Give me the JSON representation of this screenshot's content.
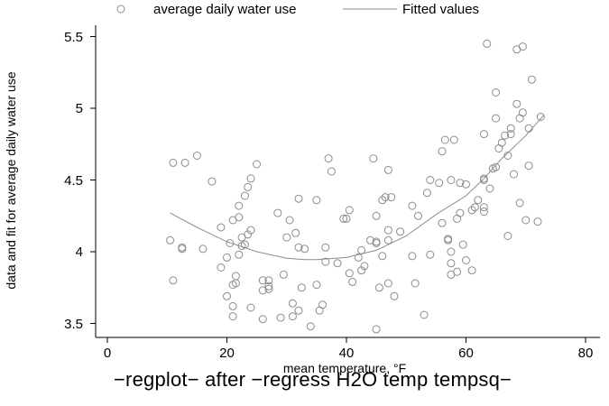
{
  "chart_data": {
    "type": "scatter",
    "title": "",
    "caption": "−regplot− after −regress H2O temp tempsq−",
    "xlabel": "mean temperature, °F",
    "ylabel": "data and fit for average daily water use",
    "xlim": [
      0,
      80
    ],
    "ylim": [
      3.45,
      5.55
    ],
    "xticks": [
      "0",
      "20",
      "40",
      "60",
      "80"
    ],
    "yticks": [
      "3.5",
      "4",
      "4.5",
      "5",
      "5.5"
    ],
    "grid": false,
    "legend": {
      "position": "top",
      "entries": [
        "average daily water use",
        "Fitted values"
      ]
    },
    "series": [
      {
        "name": "average daily water use",
        "type": "scatter",
        "marker": "hollow-circle",
        "color": "#8c8c8c",
        "points": [
          [
            11,
            4.62
          ],
          [
            13,
            4.62
          ],
          [
            15,
            4.67
          ],
          [
            17.5,
            4.49
          ],
          [
            24,
            4.51
          ],
          [
            25,
            4.61
          ],
          [
            10.5,
            4.08
          ],
          [
            11,
            3.8
          ],
          [
            12.5,
            4.03
          ],
          [
            12.5,
            4.02
          ],
          [
            16,
            4.02
          ],
          [
            19,
            4.17
          ],
          [
            19,
            3.89
          ],
          [
            20,
            3.69
          ],
          [
            20,
            3.96
          ],
          [
            20.5,
            4.06
          ],
          [
            21,
            4.22
          ],
          [
            21,
            3.77
          ],
          [
            21,
            3.62
          ],
          [
            21,
            3.55
          ],
          [
            21.5,
            3.83
          ],
          [
            21.5,
            3.78
          ],
          [
            22,
            3.98
          ],
          [
            22,
            4.24
          ],
          [
            22,
            4.32
          ],
          [
            22.5,
            4.1
          ],
          [
            22.5,
            4.04
          ],
          [
            23,
            4.05
          ],
          [
            23,
            4.39
          ],
          [
            23.5,
            4.12
          ],
          [
            23.5,
            4.45
          ],
          [
            24,
            3.61
          ],
          [
            26,
            3.53
          ],
          [
            26,
            3.8
          ],
          [
            26,
            3.73
          ],
          [
            27,
            3.76
          ],
          [
            27,
            3.74
          ],
          [
            28.5,
            4.27
          ],
          [
            29,
            3.54
          ],
          [
            29.5,
            3.84
          ],
          [
            30,
            4.1
          ],
          [
            30.5,
            4.22
          ],
          [
            31,
            3.64
          ],
          [
            31,
            3.55
          ],
          [
            31.5,
            4.13
          ],
          [
            32,
            4.03
          ],
          [
            32,
            4.37
          ],
          [
            32,
            3.59
          ],
          [
            32.5,
            3.75
          ],
          [
            34,
            3.48
          ],
          [
            35,
            3.77
          ],
          [
            35,
            4.36
          ],
          [
            35.5,
            3.59
          ],
          [
            36,
            3.63
          ],
          [
            36.5,
            3.93
          ],
          [
            36.5,
            4.03
          ],
          [
            37.5,
            4.56
          ],
          [
            38.5,
            3.92
          ],
          [
            39.5,
            4.23
          ],
          [
            40,
            4.23
          ],
          [
            40.5,
            3.85
          ],
          [
            40.5,
            4.29
          ],
          [
            41,
            3.79
          ],
          [
            42,
            3.96
          ],
          [
            42.5,
            4.01
          ],
          [
            42.5,
            3.87
          ],
          [
            43,
            3.9
          ],
          [
            44,
            4.08
          ],
          [
            44.5,
            4.65
          ],
          [
            45,
            4.25
          ],
          [
            45,
            3.46
          ],
          [
            45,
            4.06
          ],
          [
            45,
            4.07
          ],
          [
            45.5,
            3.75
          ],
          [
            46,
            4.36
          ],
          [
            46,
            3.97
          ],
          [
            46.5,
            4.38
          ],
          [
            47,
            4.57
          ],
          [
            47,
            4.15
          ],
          [
            47,
            4.08
          ],
          [
            47,
            3.78
          ],
          [
            47.5,
            4.38
          ],
          [
            48,
            3.69
          ],
          [
            51,
            4.32
          ],
          [
            51,
            3.97
          ],
          [
            51.5,
            3.78
          ],
          [
            53,
            3.56
          ],
          [
            53.5,
            4.41
          ],
          [
            54,
            3.98
          ],
          [
            55.5,
            4.48
          ],
          [
            56,
            4.2
          ],
          [
            56,
            4.7
          ],
          [
            56.5,
            4.78
          ],
          [
            57,
            4.09
          ],
          [
            57,
            4.08
          ],
          [
            57.5,
            4.5
          ],
          [
            57.5,
            4.0
          ],
          [
            57.5,
            3.92
          ],
          [
            57.5,
            3.84
          ],
          [
            58,
            4.78
          ],
          [
            58.5,
            4.23
          ],
          [
            58.5,
            3.86
          ],
          [
            59,
            4.27
          ],
          [
            59,
            4.48
          ],
          [
            59.5,
            4.05
          ],
          [
            60,
            4.47
          ],
          [
            60,
            3.94
          ],
          [
            61,
            4.29
          ],
          [
            61,
            3.87
          ],
          [
            62,
            4.36
          ],
          [
            63,
            4.82
          ],
          [
            63,
            4.51
          ],
          [
            63,
            4.28
          ],
          [
            63,
            4.31
          ],
          [
            63,
            4.5
          ],
          [
            63.5,
            5.45
          ],
          [
            64,
            4.44
          ],
          [
            64.5,
            4.58
          ],
          [
            65,
            4.59
          ],
          [
            65,
            5.11
          ],
          [
            65,
            4.93
          ],
          [
            65.5,
            4.72
          ],
          [
            66,
            4.76
          ],
          [
            66.5,
            4.81
          ],
          [
            67,
            4.11
          ],
          [
            67,
            4.67
          ],
          [
            67.5,
            4.82
          ],
          [
            67.5,
            4.86
          ],
          [
            68,
            4.54
          ],
          [
            68.5,
            5.03
          ],
          [
            68.5,
            5.41
          ],
          [
            69,
            4.34
          ],
          [
            69,
            4.93
          ],
          [
            69.5,
            5.43
          ],
          [
            69.5,
            4.97
          ],
          [
            70,
            4.22
          ],
          [
            70.5,
            4.86
          ],
          [
            70.5,
            4.6
          ],
          [
            71,
            5.2
          ],
          [
            72,
            4.21
          ],
          [
            72.5,
            4.94
          ],
          [
            61.5,
            4.31
          ],
          [
            24,
            4.15
          ],
          [
            33,
            4.02
          ],
          [
            54,
            4.5
          ],
          [
            49,
            4.14
          ],
          [
            37,
            4.65
          ],
          [
            27,
            3.8
          ],
          [
            52,
            4.25
          ]
        ]
      },
      {
        "name": "Fitted values",
        "type": "line",
        "color": "#8c8c8c",
        "points": [
          [
            10.5,
            4.27
          ],
          [
            15,
            4.17
          ],
          [
            20,
            4.07
          ],
          [
            25,
            4.0
          ],
          [
            30,
            3.955
          ],
          [
            33,
            3.945
          ],
          [
            35,
            3.945
          ],
          [
            40,
            3.96
          ],
          [
            45,
            4.01
          ],
          [
            50,
            4.11
          ],
          [
            55,
            4.26
          ],
          [
            60,
            4.39
          ],
          [
            63,
            4.51
          ],
          [
            66,
            4.65
          ],
          [
            70,
            4.81
          ],
          [
            73,
            4.95
          ]
        ]
      }
    ]
  }
}
